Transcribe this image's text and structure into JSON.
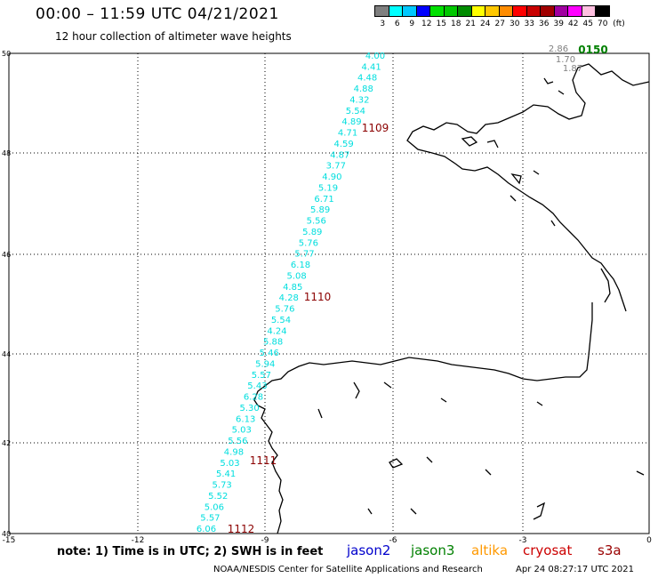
{
  "title": "00:00 – 11:59 UTC 04/21/2021",
  "subtitle": "12 hour collection of altimeter wave heights",
  "legend": {
    "labels": [
      "3",
      "6",
      "9",
      "12",
      "15",
      "18",
      "21",
      "24",
      "27",
      "30",
      "33",
      "36",
      "39",
      "42",
      "45",
      "70",
      "(ft)"
    ],
    "colors": [
      "#7f7f7f",
      "#00ffff",
      "#00c8ff",
      "#0000ff",
      "#00e000",
      "#00c800",
      "#008c00",
      "#ffff00",
      "#ffc800",
      "#ff8c00",
      "#ff0000",
      "#c80000",
      "#a00000",
      "#a000a0",
      "#ff00ff",
      "#ffc0e0",
      "#000000"
    ]
  },
  "axes": {
    "lat_labels": [
      "50",
      "48",
      "46",
      "44",
      "42",
      "40"
    ],
    "lon_labels": [
      "-15",
      "-12",
      "-9",
      "-6",
      "-3",
      "0"
    ]
  },
  "tracks": [
    {
      "time": "1109",
      "color": "#8b0000"
    },
    {
      "time": "1110",
      "color": "#8b0000"
    },
    {
      "time": "1111",
      "color": "#8b0000"
    },
    {
      "time": "1112",
      "color": "#8b0000"
    },
    {
      "time": "0150",
      "color": "#008000"
    }
  ],
  "track_values": [
    "4.00",
    "4.41",
    "4.48",
    "4.88",
    "4.32",
    "5.54",
    "4.89",
    "4.71",
    "4.59",
    "4.87",
    "3.77",
    "4.90",
    "5.19",
    "6.71",
    "5.89",
    "5.56",
    "5.89",
    "5.76",
    "5.77",
    "6.18",
    "5.08",
    "4.85",
    "4.28",
    "5.76",
    "5.54",
    "4.24",
    "5.88",
    "5.46",
    "5.94",
    "5.57",
    "5.43",
    "6.28",
    "5.30",
    "6.13",
    "5.03",
    "5.56",
    "4.98",
    "5.03",
    "5.41",
    "5.73",
    "5.52",
    "5.06",
    "5.57",
    "6.06"
  ],
  "gray_values": [
    "2.86",
    "1.70",
    "1.87"
  ],
  "note": "note: 1) Time is in UTC; 2) SWH is in feet",
  "satellites": [
    {
      "name": "jason2",
      "color": "#0000cc"
    },
    {
      "name": "jason3",
      "color": "#008000"
    },
    {
      "name": "altika",
      "color": "#ff9900"
    },
    {
      "name": "cryosat",
      "color": "#cc0000"
    },
    {
      "name": "s3a",
      "color": "#990000"
    }
  ],
  "credit": "NOAA/NESDIS Center for Satellite Applications and Research",
  "timestamp": "Apr 24 08:27:17 UTC 2021"
}
